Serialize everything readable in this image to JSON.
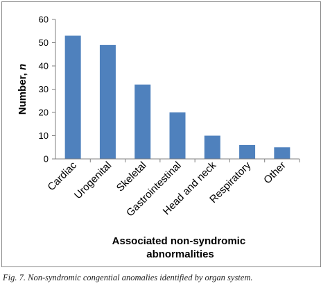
{
  "caption": "Fig. 7. Non-syndromic congential anomalies identified by organ system.",
  "chart_data": {
    "type": "bar",
    "title": "",
    "categories": [
      "Cardiac",
      "Urogenital",
      "Skeletal",
      "Gastrointestinal",
      "Head and neck",
      "Respiratory",
      "Other"
    ],
    "values": [
      53,
      49,
      32,
      20,
      10,
      6,
      5
    ],
    "ylabel_main": "Number, ",
    "ylabel_italic": "n",
    "xlabel_line1": "Associated non-syndromic",
    "xlabel_line2": "abnormalities",
    "ylim": [
      0,
      60
    ],
    "yticks": [
      "0",
      "10",
      "20",
      "30",
      "40",
      "50",
      "60"
    ],
    "bar_color": "#4f81bd",
    "grid": false,
    "legend": "none"
  }
}
